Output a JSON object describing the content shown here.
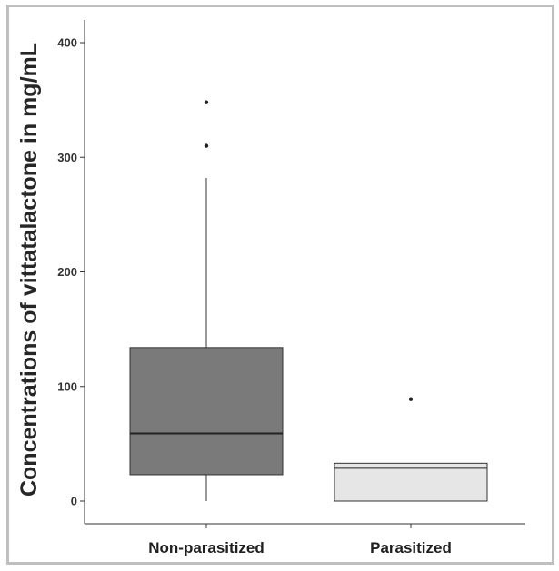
{
  "chart_data": {
    "type": "box",
    "ylabel": "Concentrations of vittatalactone in mg/mL",
    "xlabel": "",
    "title": "",
    "ylim": [
      -20,
      420
    ],
    "yticks": [
      0,
      100,
      200,
      300,
      400
    ],
    "grid": false,
    "categories": [
      "Non-parasitized",
      "Parasitized"
    ],
    "boxes": [
      {
        "category": "Non-parasitized",
        "min": 0,
        "q1": 23,
        "median": 59,
        "q3": 134,
        "max": 282,
        "outliers": [
          310,
          348
        ],
        "fill": "#7a7a7a"
      },
      {
        "category": "Parasitized",
        "min": 0,
        "q1": 0,
        "median": 29,
        "q3": 33,
        "max": 33,
        "outliers": [
          89
        ],
        "fill": "#e6e6e6"
      }
    ]
  }
}
